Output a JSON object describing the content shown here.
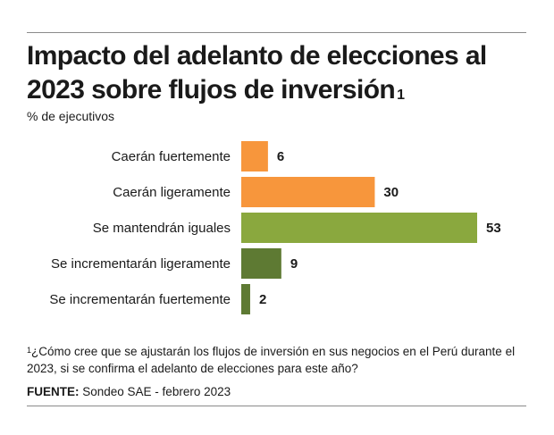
{
  "header": {
    "title": "Impacto del adelanto de elecciones al 2023 sobre flujos de inversión",
    "title_note_mark": "1",
    "subtitle": "% de ejecutivos"
  },
  "chart_data": {
    "type": "bar",
    "orientation": "horizontal",
    "title": "Impacto del adelanto de elecciones al 2023 sobre flujos de inversión",
    "unit": "% de ejecutivos",
    "categories": [
      "Caerán fuertemente",
      "Caerán ligeramente",
      "Se mantendrán iguales",
      "Se incrementarán ligeramente",
      "Se incrementarán fuertemente"
    ],
    "values": [
      6,
      30,
      53,
      9,
      2
    ],
    "colors": [
      "#f7963c",
      "#f7963c",
      "#8aa83e",
      "#5e7a33",
      "#5e7a33"
    ],
    "xlim": [
      0,
      53
    ],
    "grid": false,
    "legend": "none"
  },
  "footnote": {
    "mark": "1",
    "text": "¿Cómo cree que se ajustarán los flujos de inversión en sus negocios en el Perú durante el 2023, si se confirma el adelanto de elecciones para este año?"
  },
  "source": {
    "label": "FUENTE:",
    "text": " Sondeo SAE - febrero 2023"
  }
}
